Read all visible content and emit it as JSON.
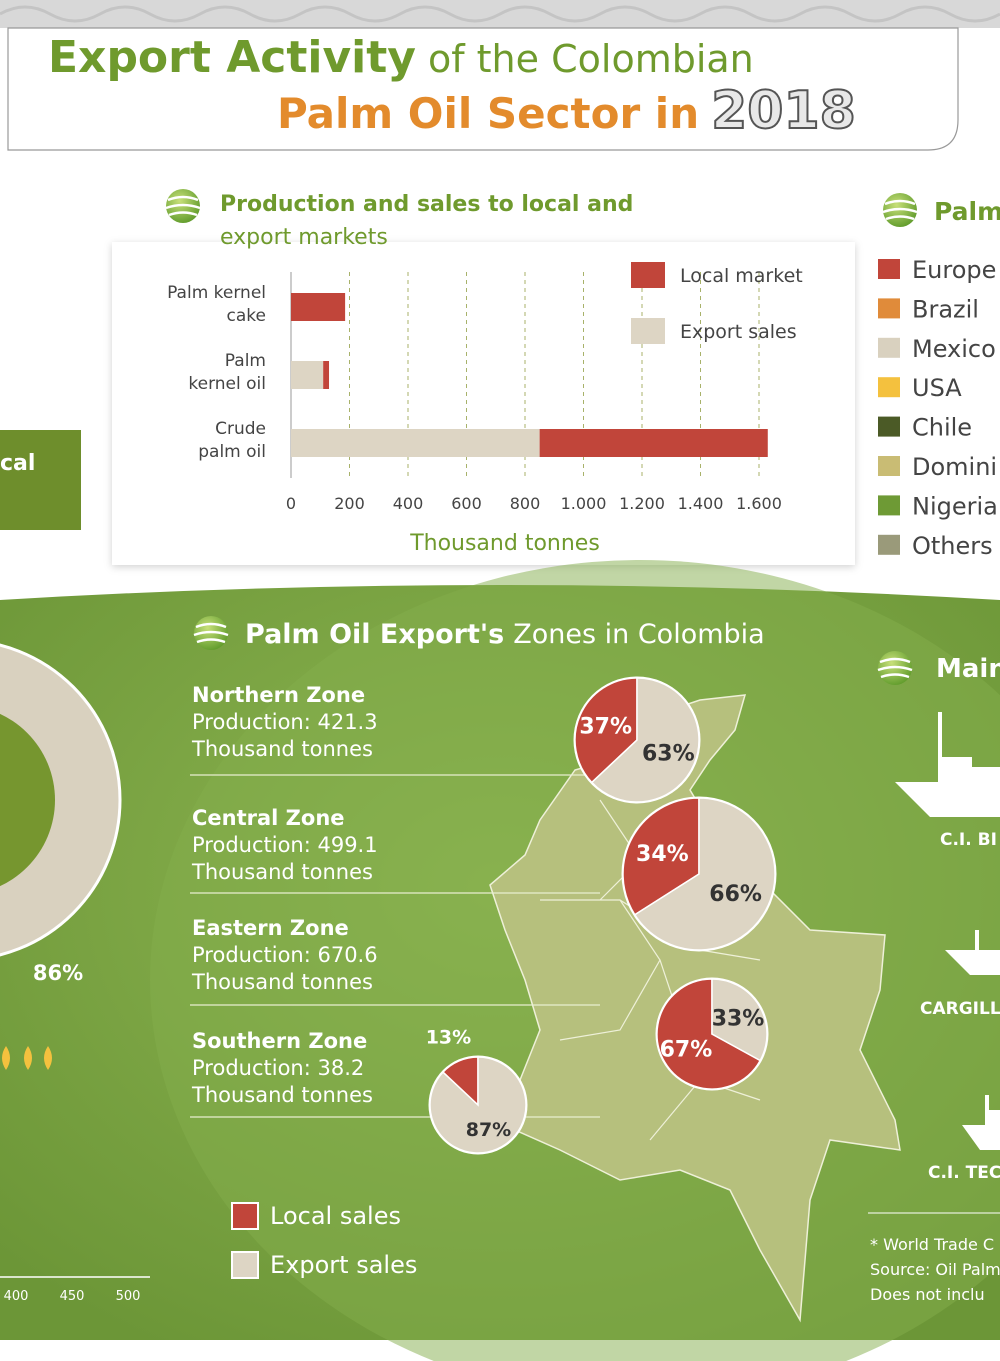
{
  "header": {
    "title_bold": "Export Activity",
    "title_rest": "of the Colombian",
    "title_line2": "Palm Oil Sector in",
    "year": "2018"
  },
  "production_chart": {
    "type": "bar",
    "title_lines": [
      "Production and sales to local and",
      "export markets"
    ],
    "categories": [
      [
        "Palm kernel",
        "cake"
      ],
      [
        "Palm",
        "kernel oil"
      ],
      [
        "Crude",
        "palm oil"
      ]
    ],
    "series": [
      {
        "name": "Export sales",
        "color": "#ddd5c4",
        "values": [
          0,
          110,
          850
        ]
      },
      {
        "name": "Local market",
        "color": "#c1453a",
        "values": [
          185,
          20,
          780
        ]
      }
    ],
    "legend_order": [
      1,
      0
    ],
    "xlim": [
      0,
      1600
    ],
    "xticks": [
      0,
      200,
      400,
      600,
      800,
      {
        "value": 1000,
        "label": "1.000"
      },
      {
        "value": 1200,
        "label": "1.200"
      },
      {
        "value": 1400,
        "label": "1.400"
      },
      {
        "value": 1600,
        "label": "1.600"
      }
    ],
    "x_label": "Thousand tonnes",
    "grid": true
  },
  "destinations": {
    "title": "Palm",
    "items": [
      {
        "name": "Europe",
        "color": "#c1453a"
      },
      {
        "name": "Brazil",
        "color": "#e08b3a"
      },
      {
        "name": "Mexico",
        "color": "#d9d1bf"
      },
      {
        "name": "USA",
        "color": "#f4c13e"
      },
      {
        "name": "Chile",
        "color": "#4b5a26"
      },
      {
        "name": "Domini",
        "color": "#c9bc74"
      },
      {
        "name": "Nigeria",
        "color": "#6e9a35"
      },
      {
        "name": "Others",
        "color": "#9a9a7a"
      }
    ]
  },
  "left_panel": {
    "label": "cal",
    "percent": "86%",
    "axis_ticks": [
      "400",
      "450",
      "500"
    ]
  },
  "zones": {
    "title_bold": "Palm Oil Export's",
    "title_rest": "Zones in Colombia",
    "items": [
      {
        "name": "Northern Zone",
        "production": "Production: 421.3",
        "unit": "Thousand tonnes",
        "local": 37,
        "export": 63,
        "local_label": "37%",
        "export_label": "63%"
      },
      {
        "name": "Central Zone",
        "production": "Production: 499.1",
        "unit": "Thousand tonnes",
        "local": 34,
        "export": 66,
        "local_label": "34%",
        "export_label": "66%"
      },
      {
        "name": "Eastern Zone",
        "production": "Production: 670.6",
        "unit": "Thousand tonnes",
        "local": 67,
        "export": 33,
        "local_label": "67%",
        "export_label": "33%"
      },
      {
        "name": "Southern Zone",
        "production": "Production: 38.2",
        "unit": "Thousand tonnes",
        "local": 13,
        "export": 87,
        "local_label": "13%",
        "export_label": "87%"
      }
    ],
    "legend": [
      {
        "name": "Local sales",
        "color": "#c1453a"
      },
      {
        "name": "Export sales",
        "color": "#ddd5c4"
      }
    ]
  },
  "exporters": {
    "title": "Main",
    "companies": [
      "C.I. BI",
      "CARGILL",
      "C.I. TEC"
    ],
    "notes": [
      "* World Trade C",
      "Source: Oil Palm",
      "Does not inclu"
    ]
  }
}
